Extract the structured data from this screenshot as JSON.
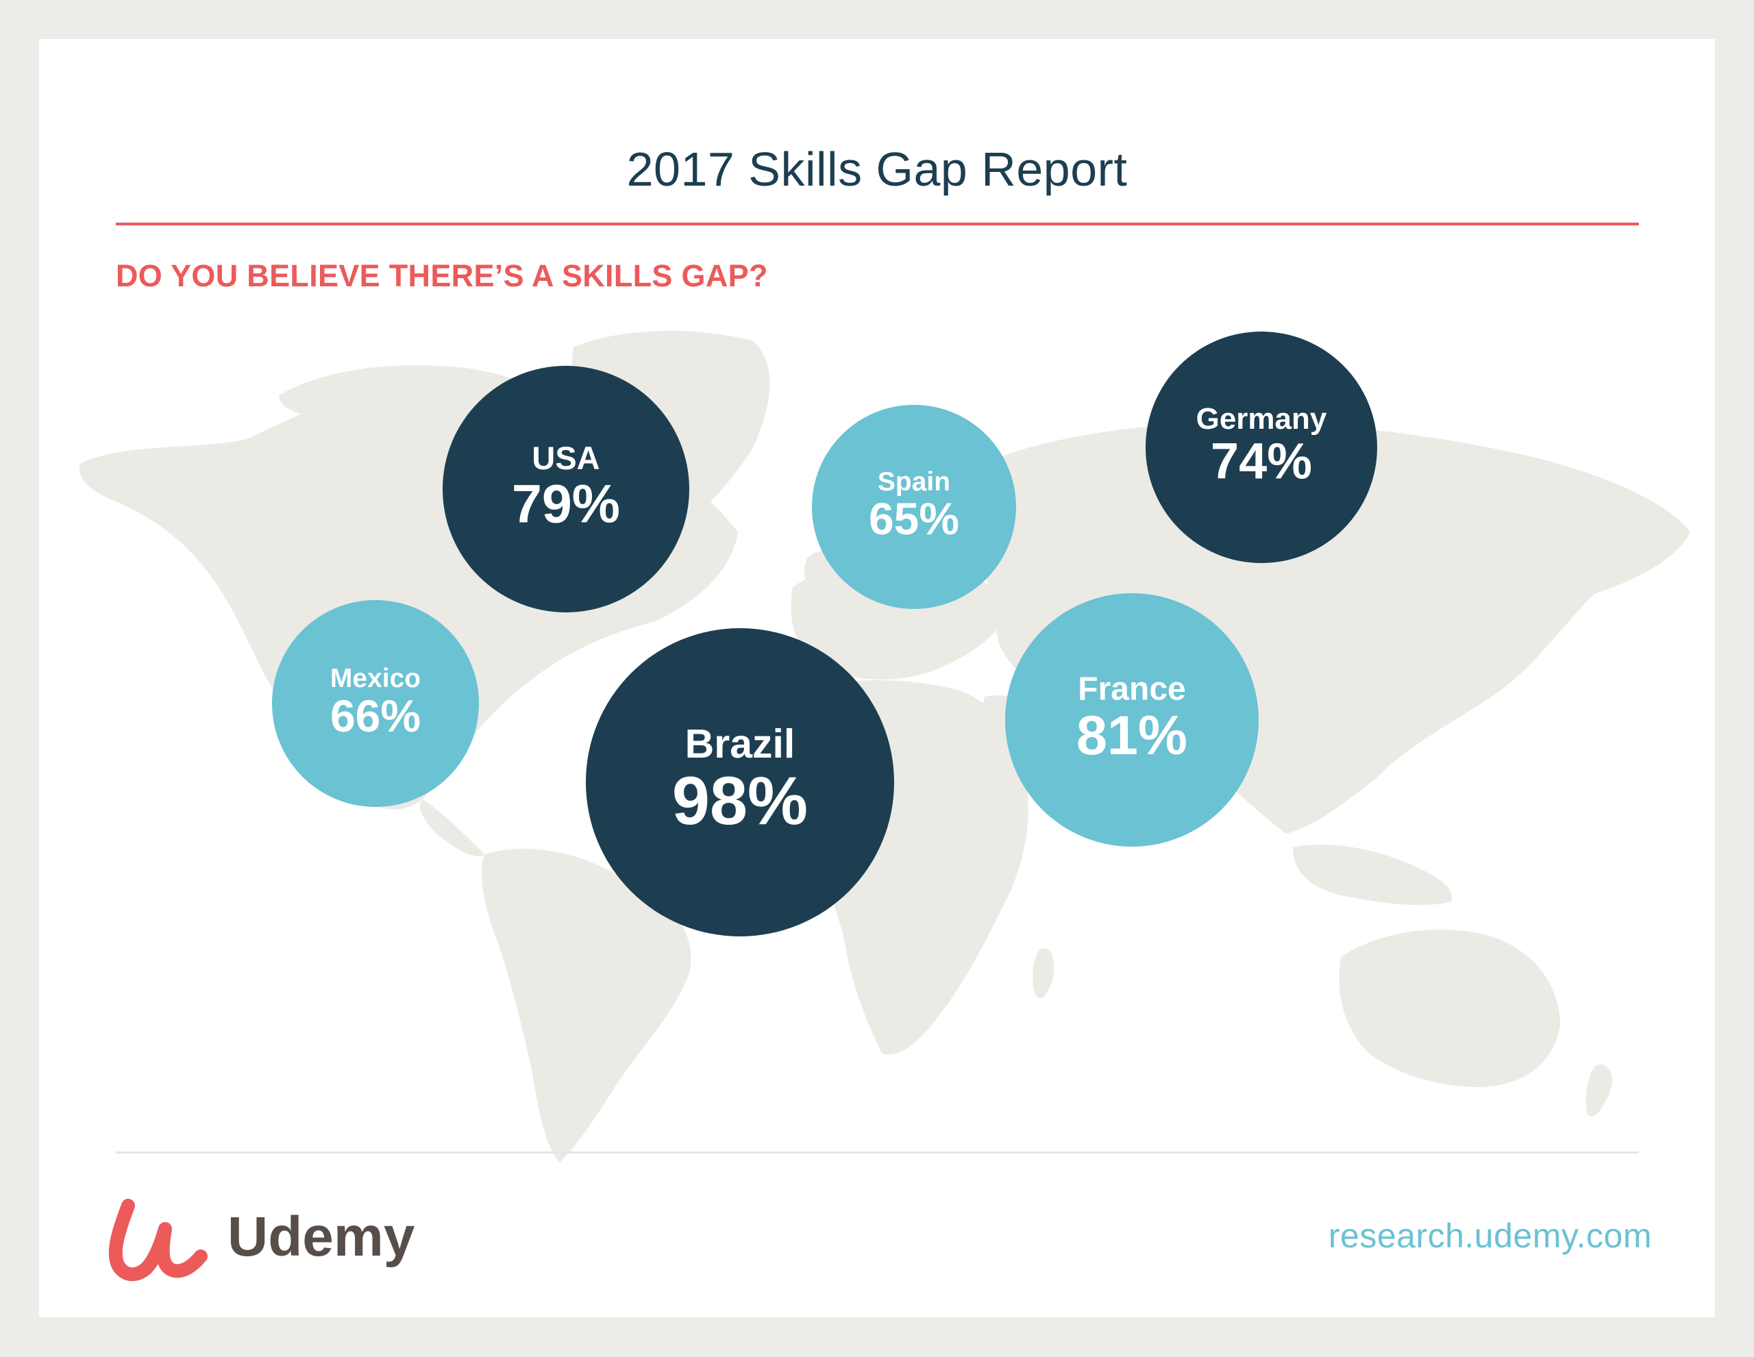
{
  "header": {
    "title": "2017 Skills Gap Report",
    "question": "DO YOU BELIEVE THERE’S A SKILLS GAP?"
  },
  "colors": {
    "dark_bubble": "#1c3e50",
    "light_bubble": "#6ac2d3",
    "accent_red": "#ec5a5a",
    "map_land": "#ebeae5",
    "logo_text": "#574e4a",
    "url_text": "#6ac2d3"
  },
  "chart_data": {
    "type": "bubble",
    "title": "DO YOU BELIEVE THERE’S A SKILLS GAP?",
    "unit": "%",
    "background": "world map",
    "series": [
      {
        "country": "USA",
        "value": 79,
        "label": "79%",
        "color": "#1c3e50"
      },
      {
        "country": "Spain",
        "value": 65,
        "label": "65%",
        "color": "#6ac2d3"
      },
      {
        "country": "Germany",
        "value": 74,
        "label": "74%",
        "color": "#1c3e50"
      },
      {
        "country": "Mexico",
        "value": 66,
        "label": "66%",
        "color": "#6ac2d3"
      },
      {
        "country": "Brazil",
        "value": 98,
        "label": "98%",
        "color": "#1c3e50"
      },
      {
        "country": "France",
        "value": 81,
        "label": "81%",
        "color": "#6ac2d3"
      }
    ]
  },
  "footer": {
    "brand": "Udemy",
    "brand_icon": "udemy-u-logo-icon",
    "url": "research.udemy.com"
  }
}
